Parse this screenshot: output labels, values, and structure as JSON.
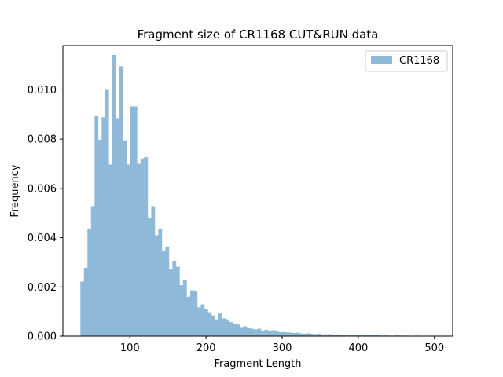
{
  "chart_data": {
    "type": "bar",
    "title": "Fragment size of CR1168 CUT&RUN data",
    "xlabel": "Fragment Length",
    "ylabel": "Frequency",
    "xlim": [
      12,
      524
    ],
    "ylim": [
      0,
      0.0118
    ],
    "x_ticks": [
      100,
      200,
      300,
      400,
      500
    ],
    "x_tick_labels": [
      "100",
      "200",
      "300",
      "400",
      "500"
    ],
    "y_ticks": [
      0,
      0.002,
      0.004,
      0.006,
      0.008,
      0.01
    ],
    "y_tick_labels": [
      "0.000",
      "0.002",
      "0.004",
      "0.006",
      "0.008",
      "0.010"
    ],
    "legend_position": "top-right",
    "bin_start": 35,
    "bin_width": 4.65,
    "color": "#8fb9d8",
    "series": [
      {
        "name": "CR1168",
        "values": [
          0.00222,
          0.00278,
          0.00435,
          0.00528,
          0.00893,
          0.00797,
          0.00889,
          0.01003,
          0.00697,
          0.01142,
          0.00885,
          0.01096,
          0.00795,
          0.00697,
          0.00933,
          0.00933,
          0.007,
          0.00722,
          0.00727,
          0.00481,
          0.00528,
          0.0041,
          0.00434,
          0.00348,
          0.00364,
          0.00271,
          0.00306,
          0.00282,
          0.00207,
          0.0023,
          0.0016,
          0.00186,
          0.00183,
          0.00117,
          0.00129,
          0.00109,
          0.00097,
          0.00084,
          0.00068,
          0.00092,
          0.00072,
          0.00068,
          0.00057,
          0.0005,
          0.00047,
          0.00037,
          0.0004,
          0.00034,
          0.0003,
          0.00027,
          0.0003,
          0.00023,
          0.00026,
          0.0002,
          0.00024,
          0.00019,
          0.00016,
          0.00017,
          0.00015,
          0.00014,
          0.00013,
          0.00014,
          0.00011,
          0.0001,
          0.00012,
          9e-05,
          8e-05,
          0.0001,
          7e-05,
          7e-05,
          8e-05,
          6e-05,
          7e-05,
          5e-05,
          6e-05,
          5e-05,
          4e-05,
          5e-05,
          4e-05,
          4e-05,
          3e-05,
          4e-05,
          3e-05,
          3e-05,
          3e-05,
          2e-05,
          3e-05,
          2e-05,
          2e-05,
          3e-05,
          2e-05,
          2e-05,
          2e-05,
          1e-05,
          2e-05,
          2e-05,
          1e-05,
          1e-05,
          1e-05,
          1e-05
        ]
      }
    ]
  }
}
